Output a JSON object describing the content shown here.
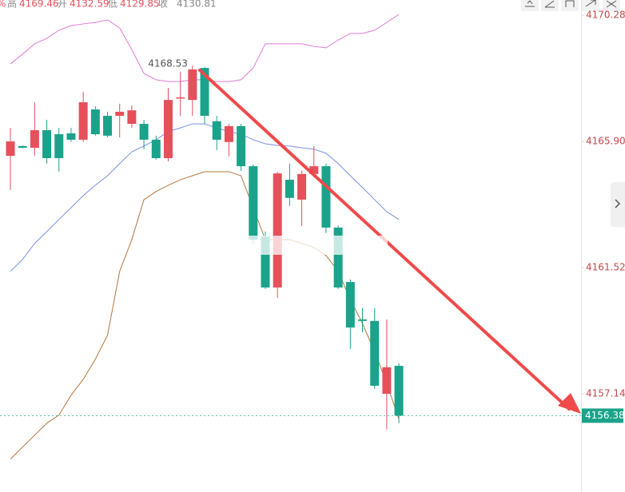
{
  "header": {
    "items": [
      "%",
      "高",
      "4169.46",
      "开",
      "4132.59",
      "低",
      "4129.85",
      "收",
      "4130.81"
    ]
  },
  "chart_data": {
    "type": "candlestick",
    "up_color": "#e5505a",
    "down_color": "#1aa38a",
    "ylim": [
      4153.73,
      4170.81
    ],
    "yticks": [
      4157.14,
      4161.52,
      {
        "value": 4165.9,
        "label": "4165.90"
      },
      4170.28
    ],
    "last_price": 4156.38,
    "open": [
      4165.4,
      4165.74,
      4165.68,
      4166.29,
      4166.15,
      4166.18,
      4165.96,
      4167.01,
      4166.79,
      4166.79,
      4166.51,
      4166.51,
      4165.96,
      4165.32,
      4167.43,
      4167.34,
      4168.45,
      4166.6,
      4165.88,
      4166.43,
      4165.04,
      4162.6,
      4160.83,
      4164.57,
      4163.88,
      4164.77,
      4165.04,
      4162.91,
      4161.02,
      4159.72,
      4159.67,
      4157.14,
      4158.11
    ],
    "high": [
      4166.37,
      4165.76,
      4167.26,
      4166.65,
      4166.37,
      4166.37,
      4167.62,
      4167.12,
      4166.93,
      4167.21,
      4167.15,
      4166.65,
      4166.1,
      4167.76,
      4168.32,
      4168.53,
      4168.48,
      4166.79,
      4166.51,
      4166.51,
      4165.1,
      4162.77,
      4164.85,
      4165.13,
      4164.88,
      4165.74,
      4165.13,
      4162.99,
      4161.11,
      4160.11,
      4160.11,
      4159.72,
      4158.2
    ],
    "low": [
      4164.21,
      4165.66,
      4165.4,
      4165.13,
      4164.85,
      4165.88,
      4165.88,
      4166.1,
      4166.04,
      4166.04,
      4166.37,
      4165.63,
      4165.27,
      4165.21,
      4166.79,
      4166.79,
      4166.51,
      4165.6,
      4165.38,
      4164.88,
      4162.36,
      4160.78,
      4160.47,
      4163.66,
      4162.97,
      4164.66,
      4162.72,
      4160.78,
      4158.7,
      4159.28,
      4157.31,
      4155.9,
      4156.12
    ],
    "close": [
      4165.9,
      4165.68,
      4166.29,
      4165.32,
      4165.32,
      4165.96,
      4167.26,
      4166.15,
      4166.1,
      4166.93,
      4166.98,
      4165.96,
      4165.32,
      4167.34,
      4167.43,
      4168.4,
      4166.79,
      4165.96,
      4166.43,
      4165.04,
      4162.49,
      4160.83,
      4164.79,
      4163.94,
      4164.77,
      4165.04,
      4162.91,
      4160.83,
      4159.44,
      4159.67,
      4157.42,
      4158.06,
      4156.38
    ],
    "bands": [
      {
        "color": "#e07ad8",
        "values": [
          4168.59,
          4168.93,
          4169.29,
          4169.48,
          4169.76,
          4169.92,
          4169.98,
          4170.03,
          4170.12,
          4169.84,
          4169.09,
          4168.26,
          4168.04,
          4167.98,
          4167.98,
          4168.04,
          4168.04,
          4167.98,
          4167.98,
          4168.04,
          4168.45,
          4169.29,
          4169.29,
          4169.29,
          4169.29,
          4169.2,
          4169.15,
          4169.42,
          4169.65,
          4169.65,
          4169.76,
          4170.03,
          4170.31
        ]
      },
      {
        "color": "#7b8fe6",
        "values": [
          4161.39,
          4161.8,
          4162.36,
          4162.77,
          4163.19,
          4163.6,
          4164.02,
          4164.38,
          4164.71,
          4165.13,
          4165.54,
          4165.74,
          4165.96,
          4166.24,
          4166.37,
          4166.51,
          4166.51,
          4166.37,
          4166.24,
          4166.15,
          4165.96,
          4165.82,
          4165.76,
          4165.74,
          4165.68,
          4165.63,
          4165.49,
          4165.13,
          4164.71,
          4164.3,
          4163.88,
          4163.46,
          4163.19
        ]
      },
      {
        "color": "#b5773e",
        "values": [
          4154.87,
          4155.29,
          4155.7,
          4156.12,
          4156.4,
          4157.09,
          4157.64,
          4158.34,
          4159.17,
          4161.39,
          4162.49,
          4163.88,
          4164.16,
          4164.38,
          4164.57,
          4164.71,
          4164.85,
          4164.85,
          4164.85,
          4164.71,
          4163.6,
          4162.49,
          4162.49,
          4162.49,
          4162.36,
          4162.22,
          4161.94,
          4161.39,
          4160.41,
          4159.58,
          4158.61,
          4157.5,
          4156.26
        ]
      }
    ]
  }
}
